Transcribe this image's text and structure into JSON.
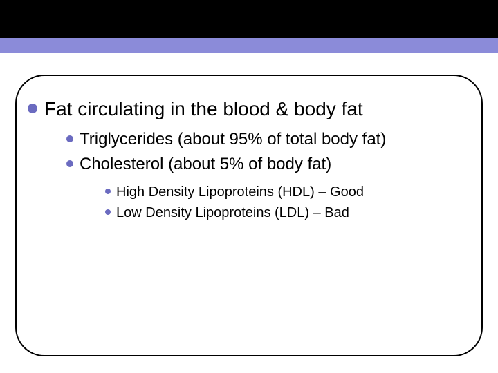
{
  "colors": {
    "top_band": "#000000",
    "purple_bar": "#8b8bd9",
    "bullet": "#6b6bc0",
    "frame_border": "#000000",
    "background": "#ffffff",
    "text": "#000000"
  },
  "typography": {
    "family": "Arial",
    "lvl1_fontsize": 28,
    "lvl2_fontsize": 24,
    "lvl3_fontsize": 20
  },
  "layout": {
    "top_band_height": 55,
    "purple_bar_height": 22,
    "frame_border_radius": 42,
    "lvl1_bullet_diameter": 14,
    "lvl2_bullet_diameter": 10,
    "lvl3_bullet_diameter": 8
  },
  "outline": {
    "lvl1": {
      "text": "Fat circulating in the blood & body fat"
    },
    "lvl2a": {
      "text": "Triglycerides (about 95% of total body fat)"
    },
    "lvl2b": {
      "text": "Cholesterol (about 5% of body fat)"
    },
    "lvl3a": {
      "text": "High Density Lipoproteins (HDL) – Good"
    },
    "lvl3b": {
      "text": "Low Density Lipoproteins (LDL) – Bad"
    }
  }
}
